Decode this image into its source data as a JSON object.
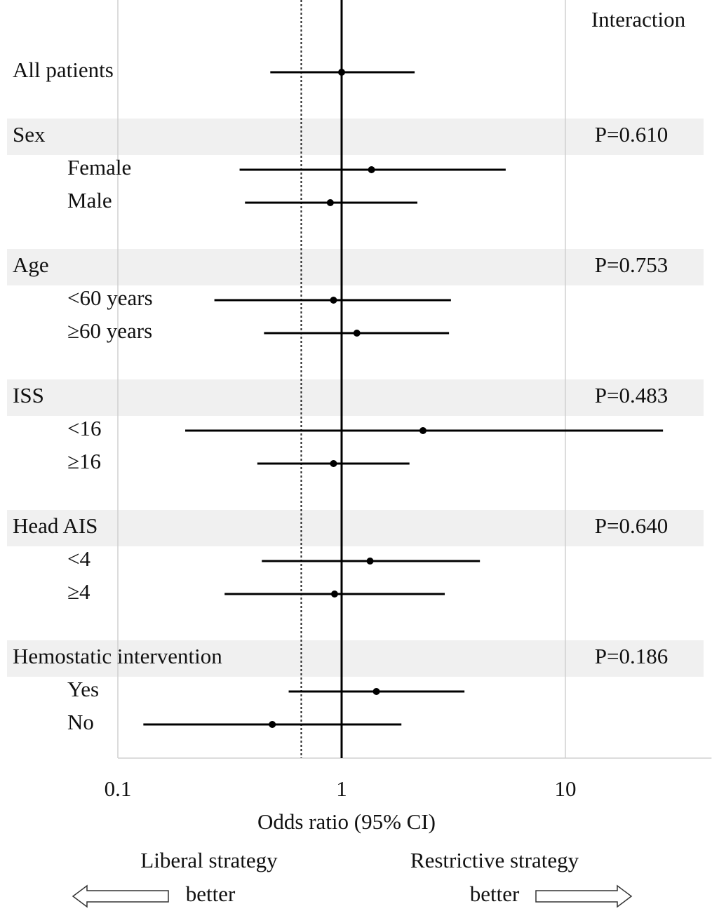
{
  "chart_data": {
    "type": "forest",
    "column_header": "Interaction",
    "x_label": "Odds ratio (95% CI)",
    "xscale": "log",
    "xlim": [
      0.1,
      45
    ],
    "xticks": [
      0.1,
      1,
      10
    ],
    "null_line": 1,
    "dotted_line": 0.66,
    "rows": [
      {
        "kind": "overall",
        "label": "All patients",
        "estimate": 1.0,
        "lower": 0.48,
        "upper": 2.12
      },
      {
        "kind": "header",
        "label": "Sex",
        "p_value": "P=0.610"
      },
      {
        "kind": "subgroup",
        "label": "Female",
        "estimate": 1.36,
        "lower": 0.35,
        "upper": 5.41
      },
      {
        "kind": "subgroup",
        "label": "Male",
        "estimate": 0.89,
        "lower": 0.37,
        "upper": 2.18
      },
      {
        "kind": "header",
        "label": "Age",
        "p_value": "P=0.753"
      },
      {
        "kind": "subgroup",
        "label": "<60 years",
        "estimate": 0.92,
        "lower": 0.27,
        "upper": 3.08
      },
      {
        "kind": "subgroup",
        "label": "≥60 years",
        "estimate": 1.17,
        "lower": 0.45,
        "upper": 3.02
      },
      {
        "kind": "header",
        "label": "ISS",
        "p_value": "P=0.483"
      },
      {
        "kind": "subgroup",
        "label": "<16",
        "estimate": 2.31,
        "lower": 0.2,
        "upper": 27.3
      },
      {
        "kind": "subgroup",
        "label": "≥16",
        "estimate": 0.92,
        "lower": 0.42,
        "upper": 2.01
      },
      {
        "kind": "header",
        "label": "Head AIS",
        "p_value": "P=0.640"
      },
      {
        "kind": "subgroup",
        "label": "<4",
        "estimate": 1.34,
        "lower": 0.44,
        "upper": 4.15
      },
      {
        "kind": "subgroup",
        "label": "≥4",
        "estimate": 0.93,
        "lower": 0.3,
        "upper": 2.89
      },
      {
        "kind": "header",
        "label": "Hemostatic intervention",
        "p_value": "P=0.186"
      },
      {
        "kind": "subgroup",
        "label": "Yes",
        "estimate": 1.43,
        "lower": 0.58,
        "upper": 3.54
      },
      {
        "kind": "subgroup",
        "label": "No",
        "estimate": 0.49,
        "lower": 0.13,
        "upper": 1.85
      }
    ],
    "footer_left": [
      "Liberal strategy",
      "better"
    ],
    "footer_right": [
      "Restrictive strategy",
      "better"
    ]
  }
}
